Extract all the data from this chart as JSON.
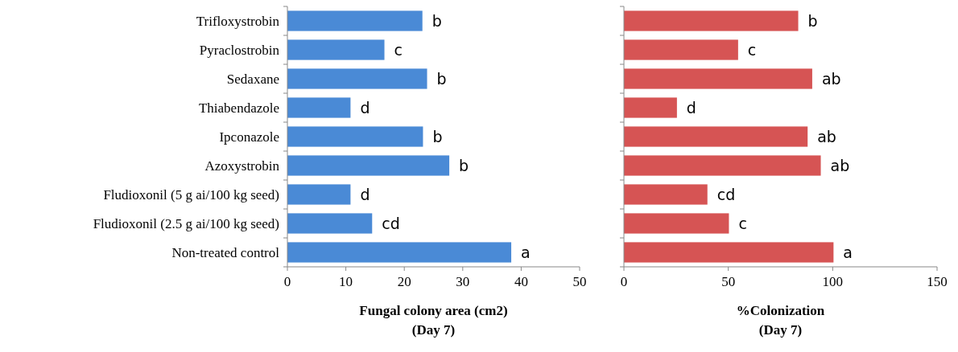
{
  "chart_data": [
    {
      "type": "bar",
      "orientation": "horizontal",
      "categories": [
        "Trifloxystrobin",
        "Pyraclostrobin",
        "Sedaxane",
        "Thiabendazole",
        "Ipconazole",
        "Azoxystrobin",
        "Fludioxonil (5 g ai/100 kg seed)",
        "Fludioxonil (2.5 g ai/100 kg seed)",
        "Non-treated control"
      ],
      "values": [
        23.1,
        16.6,
        23.9,
        10.8,
        23.2,
        27.7,
        10.8,
        14.5,
        38.3
      ],
      "value_labels": [
        "b",
        "c",
        "b",
        "d",
        "b",
        "b",
        "d",
        "cd",
        "a"
      ],
      "color": "#4a8ad6",
      "xlim": [
        0,
        50
      ],
      "xticks": [
        0,
        10,
        20,
        30,
        40,
        50
      ],
      "xlabel": "Fungal colony area (cm2)\n(Day 7)"
    },
    {
      "type": "bar",
      "orientation": "horizontal",
      "categories": [
        null,
        null,
        null,
        null,
        null,
        null,
        null,
        null,
        null
      ],
      "values": [
        83.5,
        54.7,
        90.2,
        25.4,
        88,
        94.3,
        40,
        50.3,
        100.4
      ],
      "value_labels": [
        "b",
        "c",
        "ab",
        "d",
        "ab",
        "ab",
        "cd",
        "c",
        "a"
      ],
      "color": "#d65454",
      "xlim": [
        0,
        150
      ],
      "xticks": [
        0,
        50,
        100,
        150
      ],
      "xlabel": "%Colonization\n(Day 7)"
    }
  ]
}
